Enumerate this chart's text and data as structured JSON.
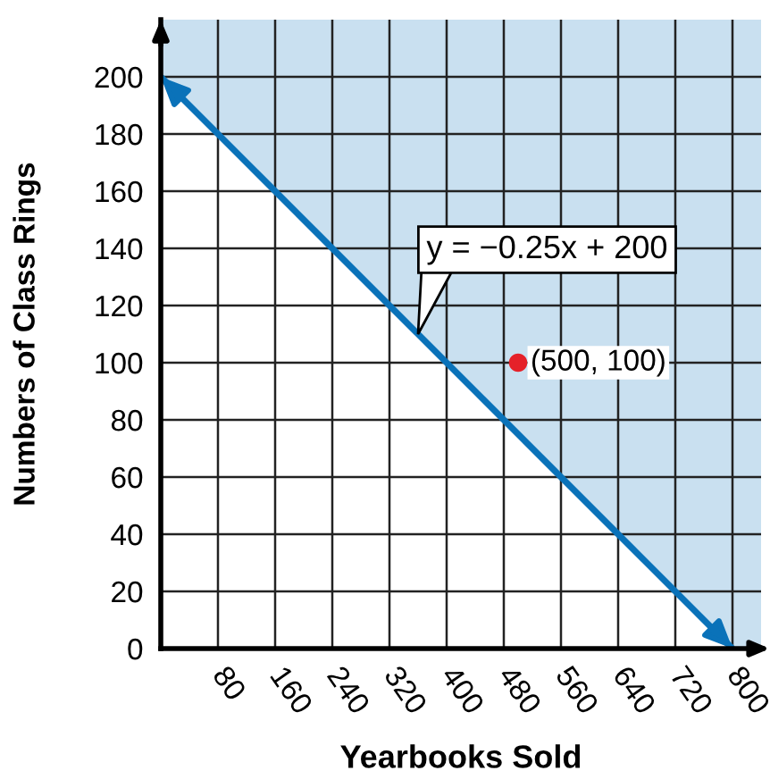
{
  "chart_data": {
    "type": "line",
    "xlabel": "Yearbooks Sold",
    "ylabel": "Numbers of Class Rings",
    "xlim": [
      0,
      840
    ],
    "ylim": [
      0,
      220
    ],
    "xticks": [
      80,
      160,
      240,
      320,
      400,
      480,
      560,
      640,
      720,
      800
    ],
    "yticks": [
      0,
      20,
      40,
      60,
      80,
      100,
      120,
      140,
      160,
      180,
      200
    ],
    "grid": true,
    "series": [
      {
        "color": "#0a72b9",
        "x": [
          0,
          800,
          840
        ],
        "values": [
          200,
          0,
          null
        ],
        "lower": [
          200,
          0,
          0
        ],
        "upper": [
          220,
          220,
          220
        ],
        "line_style": "solid"
      },
      {
        "type": "scatter",
        "color": "#e52129",
        "x": [
          500
        ],
        "values": [
          100
        ],
        "marker": "circle",
        "value_labels": [
          "(500, 100)"
        ]
      }
    ],
    "annotations": [
      {
        "text": "y = −0.25x + 200",
        "x": 360,
        "y": 110
      }
    ]
  }
}
